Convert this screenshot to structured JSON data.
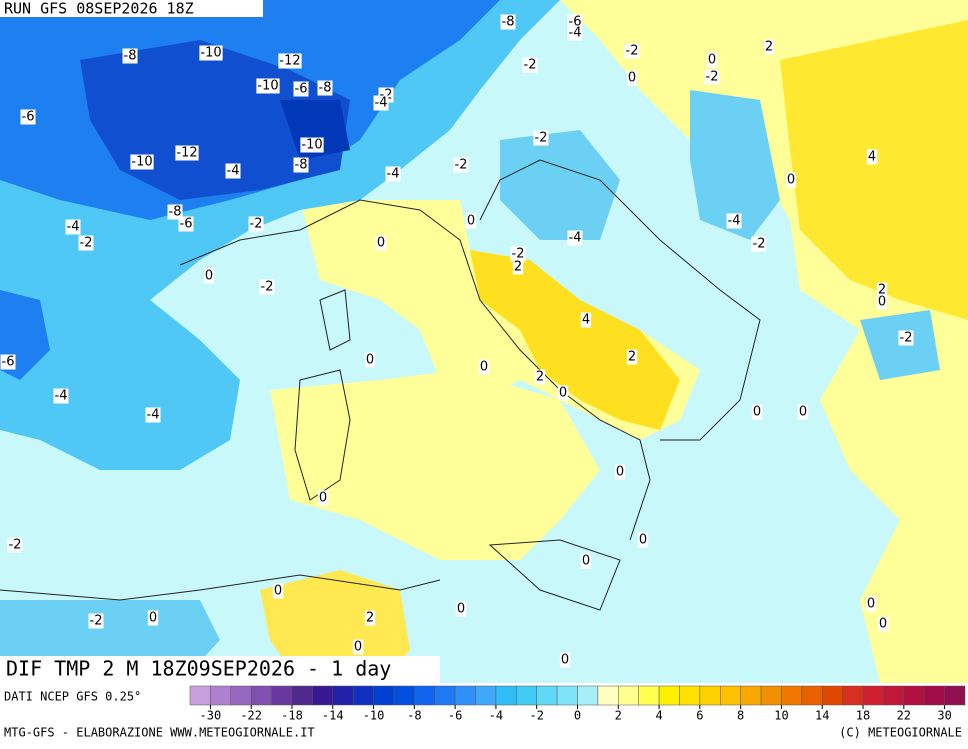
{
  "header": {
    "run": "RUN GFS 08SEP2026 18Z",
    "title": "DIF TMP 2 M 18Z09SEP2026 - 1 day",
    "source": "DATI NCEP GFS 0.25°",
    "credits": "MTG-GFS - ELABORAZIONE WWW.METEOGIORNALE.IT",
    "copyright": "(C) METEOGIORNALE"
  },
  "contour_labels": [
    -8,
    -6,
    -4,
    2,
    -8,
    -10,
    -12,
    -2,
    0,
    -2,
    0,
    -2,
    -10,
    -6,
    -8,
    -2,
    -4,
    -6,
    -10,
    -12,
    -10,
    -2,
    4,
    -8,
    -4,
    -4,
    -2,
    0,
    -8,
    -6,
    -2,
    -4,
    0,
    -4,
    -2,
    0,
    -4,
    -2,
    -2,
    2,
    0,
    -2,
    2,
    0,
    4,
    -2,
    -6,
    2,
    0,
    0,
    2,
    0,
    -4,
    -4,
    0,
    0,
    0,
    0,
    0,
    -2,
    0,
    0,
    0,
    0,
    -2,
    0,
    2,
    0,
    0,
    0
  ],
  "colorbar": {
    "ticks": [
      -30,
      -22,
      -18,
      -14,
      -10,
      -8,
      -6,
      -4,
      -2,
      0,
      2,
      4,
      6,
      8,
      10,
      14,
      18,
      22,
      30
    ],
    "colors": [
      "#c8a0e0",
      "#b080d0",
      "#9868c0",
      "#8050b0",
      "#6838a0",
      "#502890",
      "#381890",
      "#2020a8",
      "#1030c0",
      "#0040d0",
      "#0050e0",
      "#1064f0",
      "#2078f5",
      "#3090fa",
      "#40a8fa",
      "#30bcf5",
      "#40ccf5",
      "#60d8f8",
      "#80e4f8",
      "#a8eef8",
      "#ffffc0",
      "#ffff90",
      "#ffff50",
      "#fff000",
      "#ffe000",
      "#ffd000",
      "#ffc000",
      "#f8a800",
      "#f09000",
      "#f07800",
      "#e86000",
      "#e04800",
      "#d83020",
      "#d02030",
      "#c01838",
      "#b01040",
      "#a00c48",
      "#901050"
    ]
  }
}
